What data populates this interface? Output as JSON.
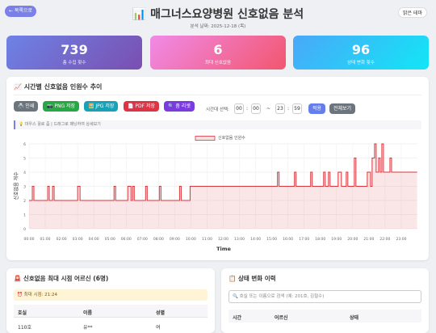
{
  "header": {
    "back_button": "← 목록으로",
    "title": "📊 매그너스요양병원 신호없음 분석",
    "date": "분석 날짜: 2025-12-18 (목)",
    "theme_button": "밝은 테마"
  },
  "stats": [
    {
      "value": 739,
      "label": "총 수집 횟수"
    },
    {
      "value": 6,
      "label": "최대 신호없음"
    },
    {
      "value": 96,
      "label": "상태 변화 횟수"
    }
  ],
  "chart_panel": {
    "title": "📈 시간별 신호없음 인원수 추이",
    "buttons": [
      "🖨️ 인쇄",
      "📷 PNG 저장",
      "🖼️ JPG 저장",
      "📄 PDF 저장",
      "🔍 줌 리셋"
    ],
    "range_label": "시간대 선택:",
    "time_inputs": [
      "00",
      "00",
      "23",
      "59"
    ],
    "separators": [
      ":",
      "~",
      ":"
    ],
    "apply_button": "적용",
    "all_button": "전체보기",
    "hint": "💡 마우스 휠로 줌 | 드래그로 패닝하여 상세보기"
  },
  "chart_data": {
    "type": "line",
    "xlabel": "Time",
    "ylabel": "신호없음 개수",
    "series": [
      {
        "name": "신호없음 인원수",
        "color": "#d9343b",
        "values": [
          2,
          2,
          3,
          3,
          2,
          2,
          3,
          3,
          2,
          2,
          3,
          3,
          2,
          2,
          3,
          3,
          2,
          2,
          3,
          3,
          2,
          2,
          3,
          3,
          2,
          2,
          3,
          3,
          2,
          2,
          3,
          3,
          2,
          2,
          3,
          3,
          2,
          2,
          3,
          3,
          2,
          2,
          3,
          3,
          4,
          4,
          3,
          3,
          4,
          4,
          3,
          3,
          4,
          4,
          3,
          3,
          4,
          4,
          3,
          3,
          4,
          4,
          3,
          3,
          4,
          4,
          3,
          3,
          4,
          4,
          3,
          3,
          5,
          5,
          3,
          3,
          4,
          4,
          3,
          3,
          5,
          5,
          6,
          6,
          4,
          4,
          5,
          5,
          4,
          4,
          6,
          6,
          4,
          4,
          5,
          5,
          4,
          4
        ]
      }
    ],
    "x": [
      0,
      0.2,
      0.2,
      0.3,
      0.3,
      1.15,
      1.15,
      1.25,
      1.25,
      1.45,
      1.45,
      1.55,
      1.55,
      3.0,
      3.0,
      3.15,
      3.15,
      5.25,
      5.25,
      5.35,
      5.35,
      6.1,
      6.1,
      6.3,
      6.3,
      6.4,
      6.4,
      6.5,
      6.5,
      7.2,
      7.2,
      7.3,
      7.3,
      8.05,
      8.05,
      8.15,
      8.15,
      9.3,
      9.3,
      9.4,
      9.4,
      9.95,
      9.95,
      15.35,
      15.35,
      15.45,
      15.45,
      16.4,
      16.4,
      16.5,
      16.5,
      17.4,
      17.4,
      17.5,
      17.5,
      18.2,
      18.2,
      18.3,
      18.3,
      18.5,
      18.5,
      18.6,
      18.6,
      19.1,
      19.1,
      19.3,
      19.3,
      19.6,
      19.6,
      19.7,
      19.7,
      20.1,
      20.1,
      20.2,
      20.2,
      20.9,
      20.9,
      21.1,
      21.1,
      21.2,
      21.2,
      21.35,
      21.35,
      21.45,
      21.45,
      21.6,
      21.6,
      21.7,
      21.7,
      21.8,
      21.8,
      21.9,
      21.9,
      22.3,
      22.3,
      22.4,
      22.4,
      23.98
    ],
    "xlim": [
      0,
      24
    ],
    "xticks": [
      {
        "value": 0,
        "label": "00:00"
      },
      {
        "value": 1,
        "label": "01:00"
      },
      {
        "value": 2,
        "label": "02:00"
      },
      {
        "value": 3,
        "label": "03:00"
      },
      {
        "value": 4,
        "label": "04:00"
      },
      {
        "value": 5,
        "label": "05:00"
      },
      {
        "value": 6,
        "label": "06:00"
      },
      {
        "value": 7,
        "label": "07:00"
      },
      {
        "value": 8,
        "label": "08:00"
      },
      {
        "value": 9,
        "label": "09:00"
      },
      {
        "value": 10,
        "label": "10:00"
      },
      {
        "value": 11,
        "label": "11:00"
      },
      {
        "value": 12,
        "label": "12:00"
      },
      {
        "value": 13,
        "label": "13:00"
      },
      {
        "value": 14,
        "label": "14:00"
      },
      {
        "value": 15,
        "label": "15:00"
      },
      {
        "value": 16,
        "label": "16:00"
      },
      {
        "value": 17,
        "label": "17:00"
      },
      {
        "value": 18,
        "label": "18:00"
      },
      {
        "value": 19,
        "label": "19:00"
      },
      {
        "value": 20,
        "label": "20:00"
      },
      {
        "value": 21,
        "label": "21:00"
      },
      {
        "value": 22,
        "label": "22:00"
      },
      {
        "value": 23,
        "label": "23:00"
      }
    ],
    "ylim": [
      0,
      6
    ],
    "yticks": [
      0,
      1,
      2,
      3,
      4,
      5,
      6
    ],
    "grid": true
  },
  "max_panel": {
    "title": "🚨 신호없음 최대 시점 어르신 (6명)",
    "time_label": "⏰ 최대 시점: 21:24",
    "headers": [
      "호실",
      "이름",
      "성별"
    ],
    "rows": [
      [
        "110호",
        "유**",
        "여"
      ]
    ]
  },
  "history_panel": {
    "title": "📋 상태 변화 이력",
    "search_placeholder": "🔍 호실 또는 이름으로 검색 (예: 201호, 김철수)",
    "headers": [
      "시간",
      "어르신",
      "상태"
    ]
  }
}
